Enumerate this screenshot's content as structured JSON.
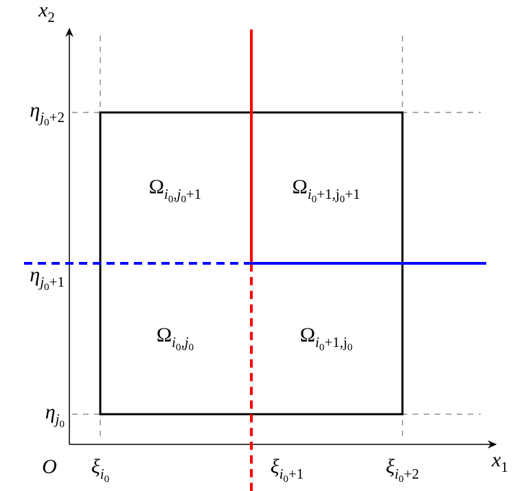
{
  "axes": {
    "x_label": [
      {
        "text": "x",
        "level": 0
      },
      {
        "text": "1",
        "level": 1
      }
    ],
    "y_label": [
      {
        "text": "x",
        "level": 0
      },
      {
        "text": "2",
        "level": 1
      }
    ],
    "origin": "O"
  },
  "ticks": {
    "x": [
      [
        {
          "text": "ξ",
          "level": 0
        },
        {
          "text": "i",
          "level": 1
        },
        {
          "text": "0",
          "level": 2
        }
      ],
      [
        {
          "text": "ξ",
          "level": 0
        },
        {
          "text": "i",
          "level": 1
        },
        {
          "text": "0",
          "level": 2
        },
        {
          "text": "+1",
          "level": 1
        }
      ],
      [
        {
          "text": "ξ",
          "level": 0
        },
        {
          "text": "i",
          "level": 1
        },
        {
          "text": "0",
          "level": 2
        },
        {
          "text": "+2",
          "level": 1
        }
      ]
    ],
    "y": [
      [
        {
          "text": "η",
          "level": 0
        },
        {
          "text": "j",
          "level": 1
        },
        {
          "text": "0",
          "level": 2
        }
      ],
      [
        {
          "text": "η",
          "level": 0
        },
        {
          "text": "j",
          "level": 1
        },
        {
          "text": "0",
          "level": 2
        },
        {
          "text": "+1",
          "level": 1
        }
      ],
      [
        {
          "text": "η",
          "level": 0
        },
        {
          "text": "j",
          "level": 1
        },
        {
          "text": "0",
          "level": 2
        },
        {
          "text": "+2",
          "level": 1
        }
      ]
    ]
  },
  "regions": [
    [
      {
        "text": "Ω",
        "level": 0
      },
      {
        "text": "i",
        "level": 1
      },
      {
        "text": "0",
        "level": 2
      },
      {
        "text": ",j",
        "level": 1
      },
      {
        "text": "0",
        "level": 2
      }
    ],
    [
      {
        "text": "Ω",
        "level": 0
      },
      {
        "text": "i",
        "level": 1
      },
      {
        "text": "0",
        "level": 2
      },
      {
        "text": "+1,j",
        "level": 1
      },
      {
        "text": "0",
        "level": 2
      }
    ],
    [
      {
        "text": "Ω",
        "level": 0
      },
      {
        "text": "i",
        "level": 1
      },
      {
        "text": "0",
        "level": 2
      },
      {
        "text": ",j",
        "level": 1
      },
      {
        "text": "0",
        "level": 2
      },
      {
        "text": "+1",
        "level": 1
      }
    ],
    [
      {
        "text": "Ω",
        "level": 0
      },
      {
        "text": "i",
        "level": 1
      },
      {
        "text": "0",
        "level": 2
      },
      {
        "text": "+1,j",
        "level": 1
      },
      {
        "text": "0",
        "level": 2
      },
      {
        "text": "+1",
        "level": 1
      }
    ]
  ]
}
